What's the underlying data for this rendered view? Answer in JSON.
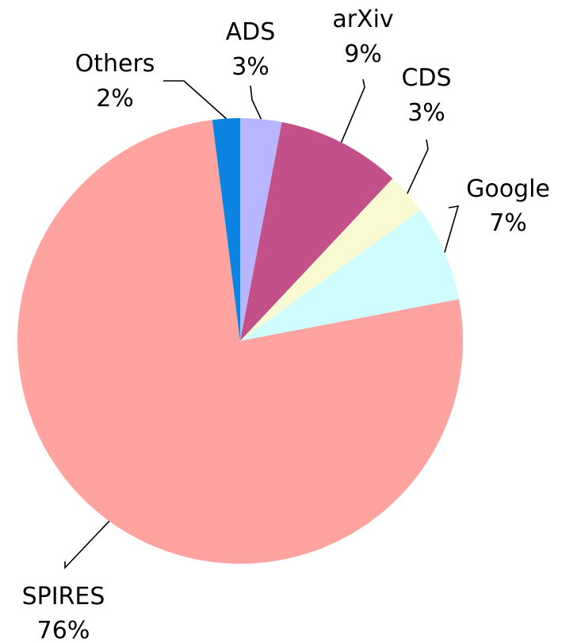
{
  "chart_data": {
    "type": "pie",
    "title": "",
    "start_angle_deg": 0,
    "direction": "clockwise",
    "slices": [
      {
        "label": "ADS",
        "value": 3,
        "value_label": "3%",
        "color": "#b8b6fe"
      },
      {
        "label": "arXiv",
        "value": 9,
        "value_label": "9%",
        "color": "#c4508a"
      },
      {
        "label": "CDS",
        "value": 3,
        "value_label": "3%",
        "color": "#fafad2"
      },
      {
        "label": "Google",
        "value": 7,
        "value_label": "7%",
        "color": "#cffcfe"
      },
      {
        "label": "SPIRES",
        "value": 76,
        "value_label": "76%",
        "color": "#fea3a0"
      },
      {
        "label": "Others",
        "value": 2,
        "value_label": "2%",
        "color": "#0b83e0"
      }
    ]
  }
}
